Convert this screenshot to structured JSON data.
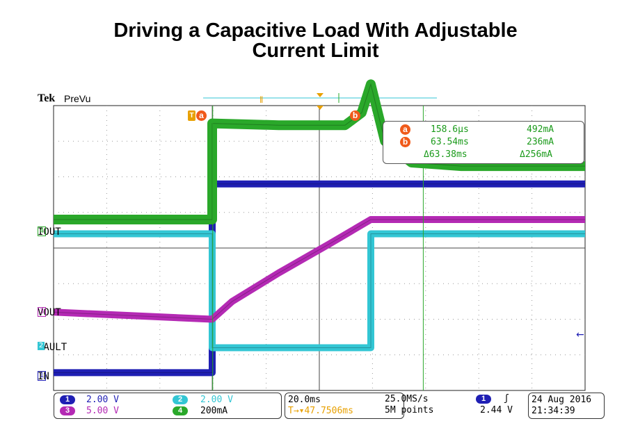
{
  "title_line1": "Driving a Capacitive Load With Adjustable",
  "title_line2": "Current Limit",
  "header": {
    "brand": "Tek",
    "mode": "PreVu"
  },
  "channels": [
    {
      "id": "1",
      "name": "IN",
      "scale": "2.00 V",
      "color": "#1f1fb4"
    },
    {
      "id": "2",
      "name": "FAULT",
      "scale": "2.00 V",
      "color": "#33c6d4"
    },
    {
      "id": "3",
      "name": "VOUT",
      "scale": "5.00 V",
      "color": "#b42ab4"
    },
    {
      "id": "4",
      "name": "IOUT",
      "scale": "200mA",
      "color": "#2aa82a"
    }
  ],
  "cursors": {
    "a": {
      "label": "a",
      "time": "158.6µs",
      "value": "492mA"
    },
    "b": {
      "label": "b",
      "time": "63.54ms",
      "value": "236mA"
    },
    "delta": {
      "time": "Δ63.38ms",
      "value": "Δ256mA"
    }
  },
  "timebase": {
    "scale": "20.0ms",
    "sample_rate": "25.0MS/s",
    "delay": "47.7506ms",
    "record": "5M points"
  },
  "trigger": {
    "channel": "1",
    "slope": "rising",
    "level": "2.44 V"
  },
  "datetime": {
    "date": "24 Aug 2016",
    "time": "21:34:39"
  },
  "chart_data": {
    "type": "line",
    "x_unit": "ms",
    "xlim": [
      -47.75,
      112.25
    ],
    "x_div": 20,
    "series": [
      {
        "name": "IN",
        "x": [
          -47.75,
          0,
          0,
          112.25
        ],
        "y": [
          -3.5,
          -3.5,
          1.8,
          1.8
        ],
        "unit": "div"
      },
      {
        "name": "FAULT",
        "x": [
          -47.75,
          0,
          0,
          47.75,
          47.75,
          112.25
        ],
        "y": [
          0.4,
          0.4,
          -2.8,
          -2.8,
          0.4,
          0.4
        ],
        "unit": "div"
      },
      {
        "name": "VOUT",
        "x": [
          -47.75,
          0,
          6,
          20,
          35,
          47.75,
          112.25
        ],
        "y": [
          -1.8,
          -2.0,
          -1.5,
          -0.7,
          0.1,
          0.8,
          0.8
        ],
        "unit": "div"
      },
      {
        "name": "IOUT",
        "x": [
          -47.75,
          0,
          0,
          20,
          40,
          45,
          47.75,
          52,
          60,
          75,
          112.25
        ],
        "y": [
          0.8,
          0.8,
          3.5,
          3.45,
          3.45,
          3.8,
          4.6,
          3.0,
          2.4,
          2.3,
          2.3
        ],
        "unit": "div"
      }
    ],
    "cursor_a_ms": 0.1586,
    "cursor_b_ms": 63.54
  }
}
